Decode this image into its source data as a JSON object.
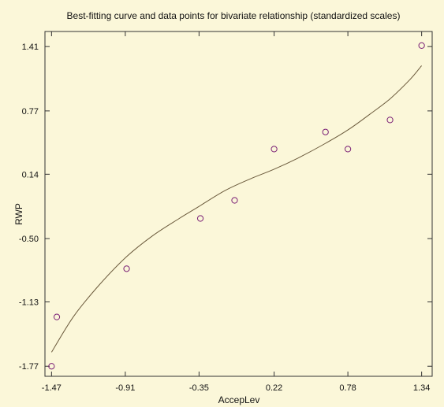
{
  "chart_data": {
    "type": "scatter",
    "title": "Best-fitting curve and data points for bivariate relationship (standardized scales)",
    "xlabel": "AccepLev",
    "ylabel": "RWP",
    "x_ticks": [
      "-1.47",
      "-0.91",
      "-0.35",
      "0.22",
      "0.78",
      "1.34"
    ],
    "y_ticks": [
      "1.41",
      "0.77",
      "0.14",
      "-0.50",
      "-1.13",
      "-1.77"
    ],
    "xlim": [
      -1.52,
      1.42
    ],
    "ylim": [
      -1.87,
      1.56
    ],
    "grid": false,
    "series": [
      {
        "type": "points",
        "x": [
          -1.47,
          -1.43,
          -0.9,
          -0.34,
          -0.08,
          0.22,
          0.61,
          0.78,
          1.1,
          1.34
        ],
        "y": [
          -1.77,
          -1.28,
          -0.8,
          -0.3,
          -0.12,
          0.39,
          0.56,
          0.39,
          0.68,
          1.42
        ]
      },
      {
        "type": "curve",
        "x": [
          -1.47,
          -1.3,
          -1.1,
          -0.9,
          -0.7,
          -0.5,
          -0.35,
          -0.15,
          0.05,
          0.22,
          0.4,
          0.6,
          0.78,
          0.95,
          1.1,
          1.25,
          1.34
        ],
        "y": [
          -1.63,
          -1.27,
          -0.95,
          -0.68,
          -0.47,
          -0.3,
          -0.18,
          -0.02,
          0.1,
          0.19,
          0.3,
          0.44,
          0.58,
          0.74,
          0.89,
          1.08,
          1.22
        ]
      }
    ],
    "colors": {
      "background": "#fbf7d9",
      "axis": "#333333",
      "curve": "#6b5a3c",
      "point_stroke": "#7a1f75"
    }
  }
}
